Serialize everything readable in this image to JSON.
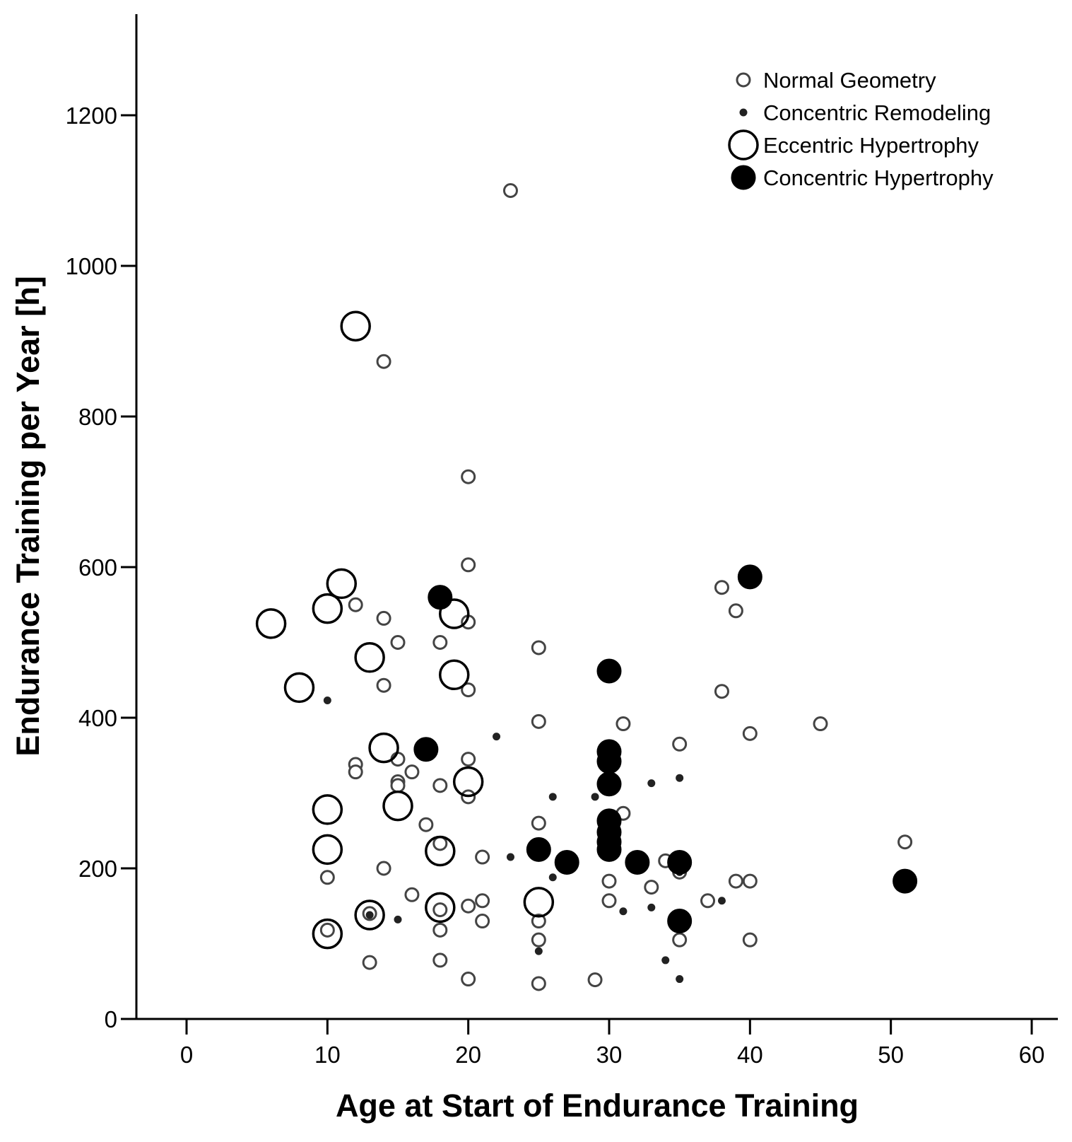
{
  "chart_data": {
    "type": "scatter",
    "title": "",
    "xlabel": "Age at Start of Endurance Training",
    "ylabel": "Endurance Training per Year [h]",
    "xlim": [
      -3.5,
      63.5
    ],
    "ylim": [
      0,
      1340
    ],
    "x_ticks": [
      0,
      10,
      20,
      30,
      40,
      50,
      60
    ],
    "y_ticks": [
      0,
      200,
      400,
      600,
      800,
      1000,
      1200
    ],
    "legend_position": "top-right",
    "series": [
      {
        "name": "Normal Geometry",
        "marker": "small-open-circle",
        "points": [
          [
            23,
            1100
          ],
          [
            14,
            873
          ],
          [
            20,
            720
          ],
          [
            20,
            603
          ],
          [
            12,
            550
          ],
          [
            14,
            532
          ],
          [
            20,
            527
          ],
          [
            15,
            500
          ],
          [
            18,
            500
          ],
          [
            14,
            443
          ],
          [
            20,
            437
          ],
          [
            25,
            493
          ],
          [
            25,
            395
          ],
          [
            31,
            392
          ],
          [
            45,
            392
          ],
          [
            40,
            379
          ],
          [
            35,
            365
          ],
          [
            38,
            573
          ],
          [
            39,
            542
          ],
          [
            38,
            435
          ],
          [
            20,
            345
          ],
          [
            15,
            345
          ],
          [
            16,
            328
          ],
          [
            12,
            338
          ],
          [
            12,
            328
          ],
          [
            15,
            315
          ],
          [
            15,
            310
          ],
          [
            18,
            310
          ],
          [
            20,
            295
          ],
          [
            31,
            273
          ],
          [
            25,
            260
          ],
          [
            17,
            258
          ],
          [
            18,
            233
          ],
          [
            21,
            215
          ],
          [
            14,
            200
          ],
          [
            10,
            188
          ],
          [
            30,
            183
          ],
          [
            33,
            175
          ],
          [
            35,
            195
          ],
          [
            34,
            210
          ],
          [
            39,
            183
          ],
          [
            40,
            183
          ],
          [
            51,
            235
          ],
          [
            37,
            157
          ],
          [
            16,
            165
          ],
          [
            21,
            157
          ],
          [
            20,
            150
          ],
          [
            18,
            145
          ],
          [
            13,
            140
          ],
          [
            21,
            130
          ],
          [
            25,
            130
          ],
          [
            10,
            118
          ],
          [
            18,
            118
          ],
          [
            25,
            105
          ],
          [
            35,
            105
          ],
          [
            40,
            105
          ],
          [
            30,
            157
          ],
          [
            13,
            75
          ],
          [
            18,
            78
          ],
          [
            20,
            53
          ],
          [
            25,
            47
          ],
          [
            29,
            52
          ]
        ]
      },
      {
        "name": "Concentric Remodeling",
        "marker": "small-dot",
        "points": [
          [
            10,
            423
          ],
          [
            22,
            375
          ],
          [
            26,
            295
          ],
          [
            29,
            295
          ],
          [
            33,
            313
          ],
          [
            35,
            320
          ],
          [
            23,
            215
          ],
          [
            26,
            188
          ],
          [
            35,
            195
          ],
          [
            31,
            143
          ],
          [
            33,
            148
          ],
          [
            38,
            157
          ],
          [
            13,
            138
          ],
          [
            15,
            132
          ],
          [
            25,
            90
          ],
          [
            34,
            78
          ],
          [
            35,
            53
          ]
        ]
      },
      {
        "name": "Eccentric Hypertrophy",
        "marker": "large-open-circle",
        "points": [
          [
            12,
            920
          ],
          [
            11,
            578
          ],
          [
            10,
            545
          ],
          [
            6,
            525
          ],
          [
            19,
            538
          ],
          [
            13,
            480
          ],
          [
            8,
            440
          ],
          [
            19,
            457
          ],
          [
            14,
            360
          ],
          [
            20,
            315
          ],
          [
            15,
            283
          ],
          [
            10,
            278
          ],
          [
            10,
            225
          ],
          [
            18,
            223
          ],
          [
            25,
            155
          ],
          [
            18,
            148
          ],
          [
            13,
            138
          ],
          [
            10,
            113
          ]
        ]
      },
      {
        "name": "Concentric Hypertrophy",
        "marker": "large-filled-circle",
        "points": [
          [
            40,
            587
          ],
          [
            18,
            560
          ],
          [
            30,
            462
          ],
          [
            17,
            358
          ],
          [
            30,
            355
          ],
          [
            30,
            342
          ],
          [
            30,
            312
          ],
          [
            30,
            263
          ],
          [
            30,
            248
          ],
          [
            30,
            235
          ],
          [
            30,
            225
          ],
          [
            25,
            225
          ],
          [
            27,
            208
          ],
          [
            32,
            208
          ],
          [
            35,
            208
          ],
          [
            51,
            183
          ],
          [
            35,
            130
          ]
        ]
      }
    ]
  }
}
